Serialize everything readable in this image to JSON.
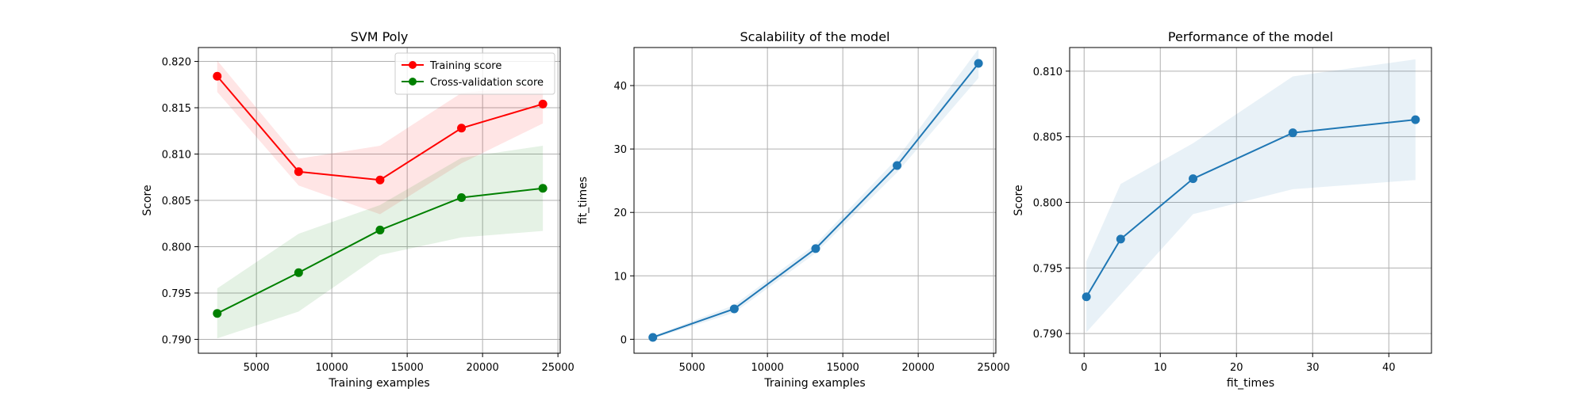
{
  "chart_data": [
    {
      "type": "line",
      "title": "SVM Poly",
      "xlabel": "Training examples",
      "ylabel": "Score",
      "xlim": [
        1150,
        25150
      ],
      "ylim": [
        0.7885,
        0.8215
      ],
      "xticks": [
        5000,
        10000,
        15000,
        20000,
        25000
      ],
      "yticks": [
        0.79,
        0.795,
        0.8,
        0.805,
        0.81,
        0.815,
        0.82
      ],
      "ytick_decimals": 3,
      "grid": true,
      "legend": "top-right",
      "x": [
        2400,
        7800,
        13200,
        18600,
        24000
      ],
      "series": [
        {
          "name": "Training score",
          "color": "#ff0000",
          "band_color": "#ff0000",
          "values": [
            0.8184,
            0.8081,
            0.8072,
            0.8128,
            0.8154
          ],
          "lower": [
            0.8167,
            0.8066,
            0.8035,
            0.809,
            0.8133
          ],
          "upper": [
            0.8201,
            0.8095,
            0.8109,
            0.8166,
            0.8175
          ]
        },
        {
          "name": "Cross-validation score",
          "color": "#008000",
          "band_color": "#008000",
          "values": [
            0.7928,
            0.7972,
            0.8018,
            0.8053,
            0.8063
          ],
          "lower": [
            0.7901,
            0.793,
            0.7991,
            0.801,
            0.8017
          ],
          "upper": [
            0.7955,
            0.8014,
            0.8045,
            0.8096,
            0.8109
          ]
        }
      ]
    },
    {
      "type": "line",
      "title": "Scalability of the model",
      "xlabel": "Training examples",
      "ylabel": "fit_times",
      "xlim": [
        1150,
        25150
      ],
      "ylim": [
        -2.2,
        46.0
      ],
      "xticks": [
        5000,
        10000,
        15000,
        20000,
        25000
      ],
      "yticks": [
        0,
        10,
        20,
        30,
        40
      ],
      "ytick_decimals": 0,
      "grid": true,
      "x": [
        2400,
        7800,
        13200,
        18600,
        24000
      ],
      "series": [
        {
          "color": "#1f77b4",
          "band_color": "#1f77b4",
          "values": [
            0.3,
            4.8,
            14.3,
            27.4,
            43.5
          ],
          "lower": [
            0.1,
            4.2,
            13.6,
            26.3,
            41.2
          ],
          "upper": [
            0.5,
            5.4,
            15.0,
            28.5,
            45.8
          ]
        }
      ]
    },
    {
      "type": "line",
      "title": "Performance of the model",
      "xlabel": "fit_times",
      "ylabel": "Score",
      "xlim": [
        -1.9,
        45.6
      ],
      "ylim": [
        0.7885,
        0.8118
      ],
      "xticks": [
        0,
        10,
        20,
        30,
        40
      ],
      "yticks": [
        0.79,
        0.795,
        0.8,
        0.805,
        0.81
      ],
      "ytick_decimals": 3,
      "grid": true,
      "x": [
        0.3,
        4.8,
        14.3,
        27.4,
        43.5
      ],
      "series": [
        {
          "color": "#1f77b4",
          "band_color": "#1f77b4",
          "values": [
            0.7928,
            0.7972,
            0.8018,
            0.8053,
            0.8063
          ],
          "lower": [
            0.7901,
            0.793,
            0.7991,
            0.801,
            0.8017
          ],
          "upper": [
            0.7955,
            0.8014,
            0.8045,
            0.8096,
            0.8109
          ]
        }
      ]
    }
  ]
}
